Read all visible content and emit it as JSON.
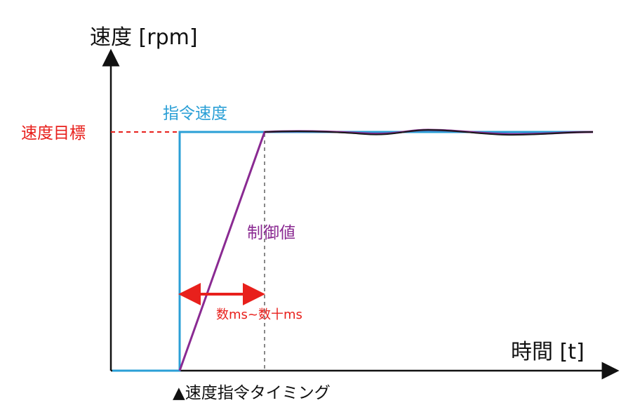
{
  "labels": {
    "y_axis": "速度 [rpm]",
    "x_axis": "時間 [t]",
    "speed_target": "速度目標",
    "command_speed": "指令速度",
    "control_value": "制御値",
    "response_span": "数ms~数十ms",
    "command_timing": "▲速度指令タイミング"
  },
  "colors": {
    "axis": "#111111",
    "target": "#e8201c",
    "command": "#2a9fd6",
    "control": "#8a2a92",
    "settle": "#1a1a1a",
    "guide": "#888888"
  }
}
